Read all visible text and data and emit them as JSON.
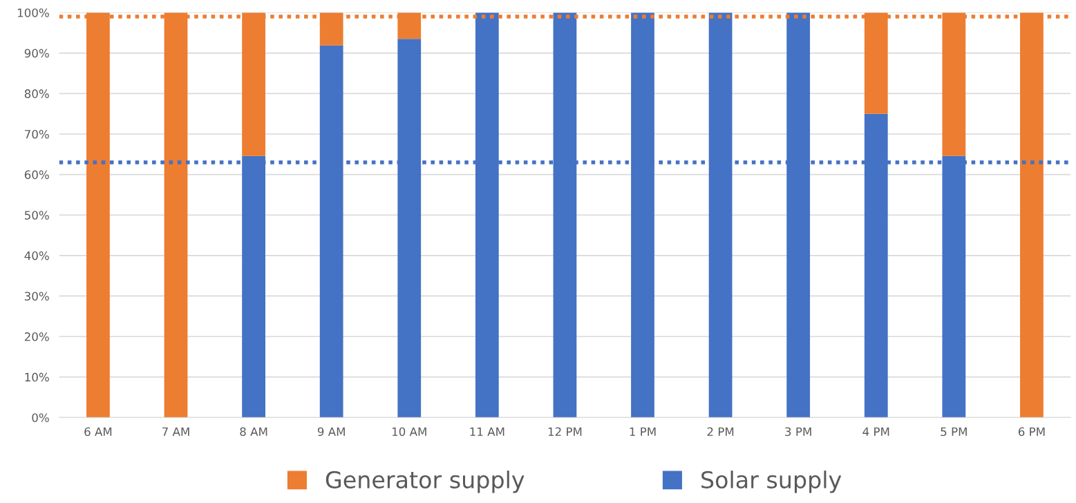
{
  "chart_data": {
    "type": "bar",
    "stacked": true,
    "categories": [
      "6 AM",
      "7 AM",
      "8 AM",
      "9 AM",
      "10 AM",
      "11 AM",
      "12 PM",
      "1 PM",
      "2 PM",
      "3 PM",
      "4 PM",
      "5 PM",
      "6 PM"
    ],
    "series": [
      {
        "name": "Solar supply",
        "color": "#4472c4",
        "values": [
          0,
          0,
          64.6,
          91.9,
          93.5,
          100,
          100,
          100,
          100,
          100,
          75,
          64.6,
          0
        ]
      },
      {
        "name": "Generator supply",
        "color": "#ed7d31",
        "values": [
          100,
          100,
          35.4,
          8.1,
          6.5,
          0,
          0,
          0,
          0,
          0,
          25,
          35.4,
          100
        ]
      }
    ],
    "ylim": [
      0,
      100
    ],
    "yticks": [
      {
        "value": 0,
        "label": "0%"
      },
      {
        "value": 10,
        "label": "10%"
      },
      {
        "value": 20,
        "label": "20%"
      },
      {
        "value": 30,
        "label": "30%"
      },
      {
        "value": 40,
        "label": "40%"
      },
      {
        "value": 50,
        "label": "50%"
      },
      {
        "value": 60,
        "label": "60%"
      },
      {
        "value": 70,
        "label": "70%"
      },
      {
        "value": 80,
        "label": "80%"
      },
      {
        "value": 90,
        "label": "90%"
      },
      {
        "value": 100,
        "label": "100%"
      }
    ],
    "ref_lines": [
      {
        "axis": "y",
        "value": 99,
        "color": "#ed7d31",
        "line_style": "dotted"
      },
      {
        "axis": "y",
        "value": 63,
        "color": "#4472c4",
        "line_style": "dotted"
      }
    ],
    "grid": "y",
    "legend": "bottom"
  }
}
